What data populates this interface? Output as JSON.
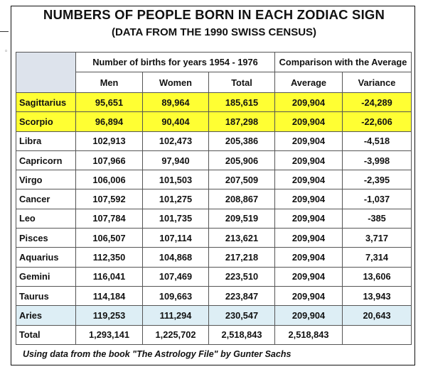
{
  "title": "NUMBERS OF PEOPLE BORN IN EACH ZODIAC SIGN",
  "subtitle": "(DATA FROM THE 1990 SWISS CENSUS)",
  "header": {
    "group_births": "Number of births for years 1954 - 1976",
    "group_comparison": "Comparison with the Average",
    "col_men": "Men",
    "col_women": "Women",
    "col_total": "Total",
    "col_average": "Average",
    "col_variance": "Variance"
  },
  "rows": [
    {
      "sign": "Sagittarius",
      "men": "95,651",
      "women": "89,964",
      "total": "185,615",
      "average": "209,904",
      "variance": "-24,289"
    },
    {
      "sign": "Scorpio",
      "men": "96,894",
      "women": "90,404",
      "total": "187,298",
      "average": "209,904",
      "variance": "-22,606"
    },
    {
      "sign": "Libra",
      "men": "102,913",
      "women": "102,473",
      "total": "205,386",
      "average": "209,904",
      "variance": "-4,518"
    },
    {
      "sign": "Capricorn",
      "men": "107,966",
      "women": "97,940",
      "total": "205,906",
      "average": "209,904",
      "variance": "-3,998"
    },
    {
      "sign": "Virgo",
      "men": "106,006",
      "women": "101,503",
      "total": "207,509",
      "average": "209,904",
      "variance": "-2,395"
    },
    {
      "sign": "Cancer",
      "men": "107,592",
      "women": "101,275",
      "total": "208,867",
      "average": "209,904",
      "variance": "-1,037"
    },
    {
      "sign": "Leo",
      "men": "107,784",
      "women": "101,735",
      "total": "209,519",
      "average": "209,904",
      "variance": "-385"
    },
    {
      "sign": "Pisces",
      "men": "106,507",
      "women": "107,114",
      "total": "213,621",
      "average": "209,904",
      "variance": "3,717"
    },
    {
      "sign": "Aquarius",
      "men": "112,350",
      "women": "104,868",
      "total": "217,218",
      "average": "209,904",
      "variance": "7,314"
    },
    {
      "sign": "Gemini",
      "men": "116,041",
      "women": "107,469",
      "total": "223,510",
      "average": "209,904",
      "variance": "13,606"
    },
    {
      "sign": "Taurus",
      "men": "114,184",
      "women": "109,663",
      "total": "223,847",
      "average": "209,904",
      "variance": "13,943"
    },
    {
      "sign": "Aries",
      "men": "119,253",
      "women": "111,294",
      "total": "230,547",
      "average": "209,904",
      "variance": "20,643"
    }
  ],
  "totals": {
    "label": "Total",
    "men": "1,293,141",
    "women": "1,225,702",
    "total": "2,518,843",
    "average": "2,518,843"
  },
  "highlight_colors": {
    "yellow": "#ffff33",
    "light_blue": "#ddeef5",
    "header_gray": "#dde3ec",
    "negative_variance": "#d10000"
  },
  "footnote": "Using data from the book \"The Astrology File\" by Gunter Sachs"
}
